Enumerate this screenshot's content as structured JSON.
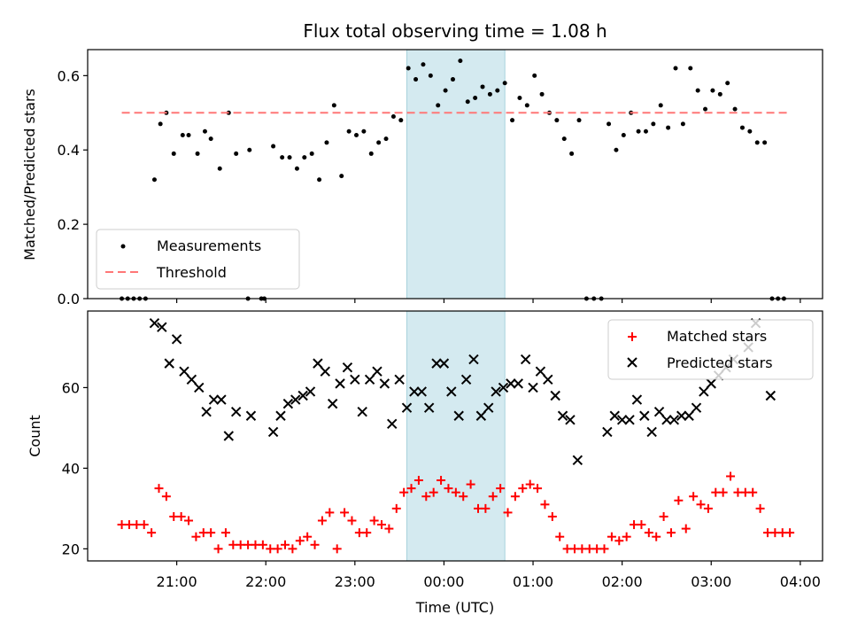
{
  "chart_data": [
    {
      "type": "scatter",
      "title": "Flux total observing time = 1.08 h",
      "xlabel": "",
      "ylabel": "Matched/Predicted stars",
      "ylim": [
        0,
        0.67
      ],
      "yticks": [
        "0.0",
        "0.2",
        "0.4",
        "0.6"
      ],
      "grid": false,
      "legend_position": "lower-left",
      "highlight_window": {
        "start": "23:35",
        "end": "00:41",
        "color": "#d4eaf0"
      },
      "threshold": {
        "name": "Threshold",
        "value": 0.5,
        "color": "#ff7777"
      },
      "series": [
        {
          "name": "Measurements",
          "color": "#000000",
          "points": [
            [
              "20:23",
              0
            ],
            [
              "20:27",
              0
            ],
            [
              "20:31",
              0
            ],
            [
              "20:35",
              0
            ],
            [
              "20:39",
              0
            ],
            [
              "20:45",
              0.32
            ],
            [
              "20:49",
              0.47
            ],
            [
              "20:53",
              0.5
            ],
            [
              "20:58",
              0.39
            ],
            [
              "21:04",
              0.44
            ],
            [
              "21:08",
              0.44
            ],
            [
              "21:14",
              0.39
            ],
            [
              "21:19",
              0.45
            ],
            [
              "21:23",
              0.43
            ],
            [
              "21:29",
              0.35
            ],
            [
              "21:35",
              0.5
            ],
            [
              "21:40",
              0.39
            ],
            [
              "21:48",
              0
            ],
            [
              "21:49",
              0.4
            ],
            [
              "21:57",
              0
            ],
            [
              "21:59",
              0
            ],
            [
              "22:05",
              0.41
            ],
            [
              "22:11",
              0.38
            ],
            [
              "22:16",
              0.38
            ],
            [
              "22:21",
              0.35
            ],
            [
              "22:26",
              0.38
            ],
            [
              "22:31",
              0.39
            ],
            [
              "22:36",
              0.32
            ],
            [
              "22:41",
              0.42
            ],
            [
              "22:46",
              0.52
            ],
            [
              "22:51",
              0.33
            ],
            [
              "22:56",
              0.45
            ],
            [
              "23:01",
              0.44
            ],
            [
              "23:06",
              0.45
            ],
            [
              "23:11",
              0.39
            ],
            [
              "23:16",
              0.42
            ],
            [
              "23:21",
              0.43
            ],
            [
              "23:26",
              0.49
            ],
            [
              "23:31",
              0.48
            ],
            [
              "23:36",
              0.62
            ],
            [
              "23:41",
              0.59
            ],
            [
              "23:46",
              0.63
            ],
            [
              "23:51",
              0.6
            ],
            [
              "23:56",
              0.52
            ],
            [
              "00:01",
              0.56
            ],
            [
              "00:06",
              0.59
            ],
            [
              "00:11",
              0.64
            ],
            [
              "00:16",
              0.53
            ],
            [
              "00:21",
              0.54
            ],
            [
              "00:26",
              0.57
            ],
            [
              "00:31",
              0.55
            ],
            [
              "00:36",
              0.56
            ],
            [
              "00:41",
              0.58
            ],
            [
              "00:46",
              0.48
            ],
            [
              "00:51",
              0.54
            ],
            [
              "00:56",
              0.52
            ],
            [
              "01:01",
              0.6
            ],
            [
              "01:06",
              0.55
            ],
            [
              "01:11",
              0.5
            ],
            [
              "01:16",
              0.48
            ],
            [
              "01:21",
              0.43
            ],
            [
              "01:26",
              0.39
            ],
            [
              "01:31",
              0.48
            ],
            [
              "01:36",
              0
            ],
            [
              "01:41",
              0
            ],
            [
              "01:46",
              0
            ],
            [
              "01:51",
              0.47
            ],
            [
              "01:56",
              0.4
            ],
            [
              "02:01",
              0.44
            ],
            [
              "02:06",
              0.5
            ],
            [
              "02:11",
              0.45
            ],
            [
              "02:16",
              0.45
            ],
            [
              "02:21",
              0.47
            ],
            [
              "02:26",
              0.52
            ],
            [
              "02:31",
              0.46
            ],
            [
              "02:36",
              0.62
            ],
            [
              "02:41",
              0.47
            ],
            [
              "02:46",
              0.62
            ],
            [
              "02:51",
              0.56
            ],
            [
              "02:56",
              0.51
            ],
            [
              "03:01",
              0.56
            ],
            [
              "03:06",
              0.55
            ],
            [
              "03:11",
              0.58
            ],
            [
              "03:16",
              0.51
            ],
            [
              "03:21",
              0.46
            ],
            [
              "03:26",
              0.45
            ],
            [
              "03:31",
              0.42
            ],
            [
              "03:36",
              0.42
            ],
            [
              "03:41",
              0
            ],
            [
              "03:45",
              0
            ],
            [
              "03:49",
              0
            ]
          ]
        }
      ]
    },
    {
      "type": "scatter",
      "title": "",
      "xlabel": "Time (UTC)",
      "ylabel": "Count",
      "ylim": [
        17,
        79
      ],
      "yticks": [
        "20",
        "40",
        "60"
      ],
      "xticks": [
        "21:00",
        "22:00",
        "23:00",
        "00:00",
        "01:00",
        "02:00",
        "03:00",
        "04:00"
      ],
      "xlim": [
        "20:00",
        "04:15"
      ],
      "grid": false,
      "legend_position": "top-right",
      "highlight_window": {
        "start": "23:35",
        "end": "00:41",
        "color": "#d4eaf0"
      },
      "series": [
        {
          "name": "Matched stars",
          "marker": "plus",
          "color": "#ff0000",
          "points": [
            [
              "20:23",
              26
            ],
            [
              "20:28",
              26
            ],
            [
              "20:33",
              26
            ],
            [
              "20:38",
              26
            ],
            [
              "20:43",
              24
            ],
            [
              "20:48",
              35
            ],
            [
              "20:53",
              33
            ],
            [
              "20:58",
              28
            ],
            [
              "21:03",
              28
            ],
            [
              "21:08",
              27
            ],
            [
              "21:13",
              23
            ],
            [
              "21:18",
              24
            ],
            [
              "21:23",
              24
            ],
            [
              "21:28",
              20
            ],
            [
              "21:33",
              24
            ],
            [
              "21:38",
              21
            ],
            [
              "21:43",
              21
            ],
            [
              "21:48",
              21
            ],
            [
              "21:53",
              21
            ],
            [
              "21:58",
              21
            ],
            [
              "22:03",
              20
            ],
            [
              "22:08",
              20
            ],
            [
              "22:13",
              21
            ],
            [
              "22:18",
              20
            ],
            [
              "22:23",
              22
            ],
            [
              "22:28",
              23
            ],
            [
              "22:33",
              21
            ],
            [
              "22:38",
              27
            ],
            [
              "22:43",
              29
            ],
            [
              "22:48",
              20
            ],
            [
              "22:53",
              29
            ],
            [
              "22:58",
              27
            ],
            [
              "23:03",
              24
            ],
            [
              "23:08",
              24
            ],
            [
              "23:13",
              27
            ],
            [
              "23:18",
              26
            ],
            [
              "23:23",
              25
            ],
            [
              "23:28",
              30
            ],
            [
              "23:33",
              34
            ],
            [
              "23:38",
              35
            ],
            [
              "23:43",
              37
            ],
            [
              "23:48",
              33
            ],
            [
              "23:53",
              34
            ],
            [
              "23:58",
              37
            ],
            [
              "00:03",
              35
            ],
            [
              "00:08",
              34
            ],
            [
              "00:13",
              33
            ],
            [
              "00:18",
              36
            ],
            [
              "00:23",
              30
            ],
            [
              "00:28",
              30
            ],
            [
              "00:33",
              33
            ],
            [
              "00:38",
              35
            ],
            [
              "00:43",
              29
            ],
            [
              "00:48",
              33
            ],
            [
              "00:53",
              35
            ],
            [
              "00:58",
              36
            ],
            [
              "01:03",
              35
            ],
            [
              "01:08",
              31
            ],
            [
              "01:13",
              28
            ],
            [
              "01:18",
              23
            ],
            [
              "01:23",
              20
            ],
            [
              "01:28",
              20
            ],
            [
              "01:33",
              20
            ],
            [
              "01:38",
              20
            ],
            [
              "01:43",
              20
            ],
            [
              "01:48",
              20
            ],
            [
              "01:53",
              23
            ],
            [
              "01:58",
              22
            ],
            [
              "02:03",
              23
            ],
            [
              "02:08",
              26
            ],
            [
              "02:13",
              26
            ],
            [
              "02:18",
              24
            ],
            [
              "02:23",
              23
            ],
            [
              "02:28",
              28
            ],
            [
              "02:33",
              24
            ],
            [
              "02:38",
              32
            ],
            [
              "02:43",
              25
            ],
            [
              "02:48",
              33
            ],
            [
              "02:53",
              31
            ],
            [
              "02:58",
              30
            ],
            [
              "03:03",
              34
            ],
            [
              "03:08",
              34
            ],
            [
              "03:13",
              38
            ],
            [
              "03:18",
              34
            ],
            [
              "03:23",
              34
            ],
            [
              "03:28",
              34
            ],
            [
              "03:33",
              30
            ],
            [
              "03:38",
              24
            ],
            [
              "03:43",
              24
            ],
            [
              "03:48",
              24
            ],
            [
              "03:53",
              24
            ]
          ]
        },
        {
          "name": "Predicted stars",
          "marker": "x",
          "color": "#000000",
          "points": [
            [
              "20:45",
              76
            ],
            [
              "20:50",
              75
            ],
            [
              "20:55",
              66
            ],
            [
              "21:00",
              72
            ],
            [
              "21:05",
              64
            ],
            [
              "21:10",
              62
            ],
            [
              "21:15",
              60
            ],
            [
              "21:20",
              54
            ],
            [
              "21:25",
              57
            ],
            [
              "21:30",
              57
            ],
            [
              "21:35",
              48
            ],
            [
              "21:40",
              54
            ],
            [
              "21:50",
              53
            ],
            [
              "22:05",
              49
            ],
            [
              "22:10",
              53
            ],
            [
              "22:15",
              56
            ],
            [
              "22:20",
              57
            ],
            [
              "22:25",
              58
            ],
            [
              "22:30",
              59
            ],
            [
              "22:35",
              66
            ],
            [
              "22:40",
              64
            ],
            [
              "22:45",
              56
            ],
            [
              "22:50",
              61
            ],
            [
              "22:55",
              65
            ],
            [
              "23:00",
              62
            ],
            [
              "23:05",
              54
            ],
            [
              "23:10",
              62
            ],
            [
              "23:15",
              64
            ],
            [
              "23:20",
              61
            ],
            [
              "23:25",
              51
            ],
            [
              "23:30",
              62
            ],
            [
              "23:35",
              55
            ],
            [
              "23:40",
              59
            ],
            [
              "23:45",
              59
            ],
            [
              "23:50",
              55
            ],
            [
              "23:55",
              66
            ],
            [
              "00:00",
              66
            ],
            [
              "00:05",
              59
            ],
            [
              "00:10",
              53
            ],
            [
              "00:15",
              62
            ],
            [
              "00:20",
              67
            ],
            [
              "00:25",
              53
            ],
            [
              "00:30",
              55
            ],
            [
              "00:35",
              59
            ],
            [
              "00:40",
              60
            ],
            [
              "00:45",
              61
            ],
            [
              "00:50",
              61
            ],
            [
              "00:55",
              67
            ],
            [
              "01:00",
              60
            ],
            [
              "01:05",
              64
            ],
            [
              "01:10",
              62
            ],
            [
              "01:15",
              58
            ],
            [
              "01:20",
              53
            ],
            [
              "01:25",
              52
            ],
            [
              "01:30",
              42
            ],
            [
              "01:50",
              49
            ],
            [
              "01:55",
              53
            ],
            [
              "02:00",
              52
            ],
            [
              "02:05",
              52
            ],
            [
              "02:10",
              57
            ],
            [
              "02:15",
              53
            ],
            [
              "02:20",
              49
            ],
            [
              "02:25",
              54
            ],
            [
              "02:30",
              52
            ],
            [
              "02:35",
              52
            ],
            [
              "02:40",
              53
            ],
            [
              "02:45",
              53
            ],
            [
              "02:50",
              55
            ],
            [
              "02:55",
              59
            ],
            [
              "03:00",
              61
            ],
            [
              "03:05",
              63
            ],
            [
              "03:10",
              65
            ],
            [
              "03:15",
              67
            ],
            [
              "03:25",
              70
            ],
            [
              "03:30",
              76
            ],
            [
              "03:40",
              58
            ]
          ]
        }
      ]
    }
  ]
}
